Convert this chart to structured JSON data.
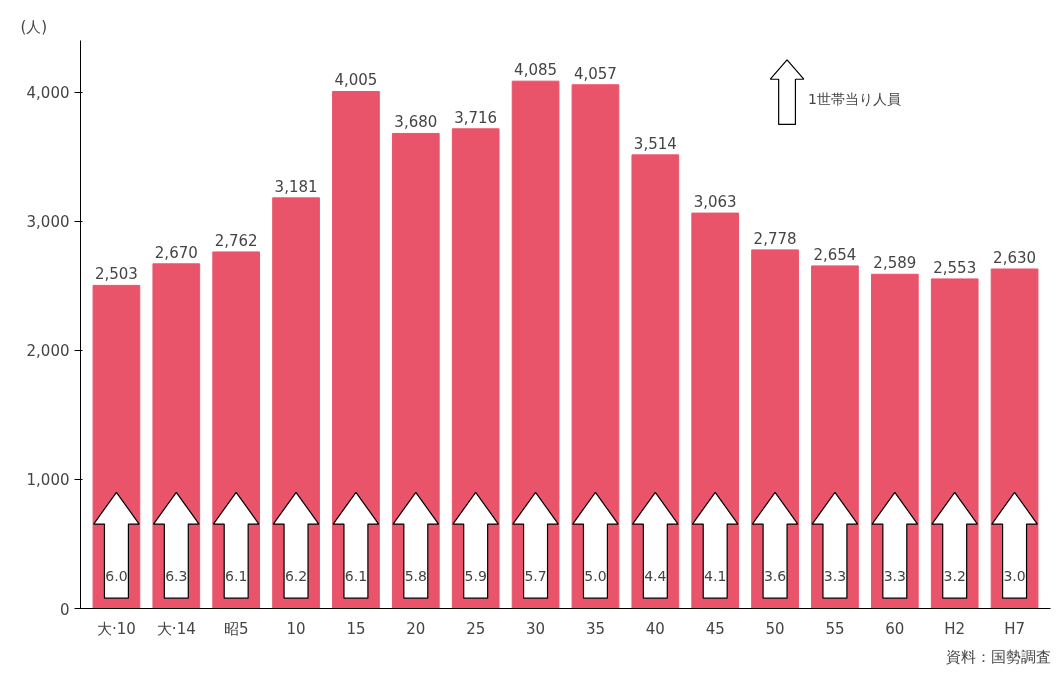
{
  "chart_data": {
    "type": "bar",
    "ylabel": "(人)",
    "categories": [
      "大·10",
      "大·14",
      "昭5",
      "10",
      "15",
      "20",
      "25",
      "30",
      "35",
      "40",
      "45",
      "50",
      "55",
      "60",
      "H2",
      "H7"
    ],
    "values": [
      2503,
      2670,
      2762,
      3181,
      4005,
      3680,
      3716,
      4085,
      4057,
      3514,
      3063,
      2778,
      2654,
      2589,
      2553,
      2630
    ],
    "color": "#e9546b",
    "ylim": [
      0,
      4400
    ],
    "yticks": [
      0,
      {
        "value": 1000,
        "label": "1,000"
      },
      {
        "value": 2000,
        "label": "2,000"
      },
      {
        "value": 3000,
        "label": "3,000"
      },
      {
        "value": 4000,
        "label": "4,000"
      }
    ],
    "value_labels": [
      "2,503",
      "2,670",
      "2,762",
      "3,181",
      "4,005",
      "3,680",
      "3,716",
      "4,085",
      "4,057",
      "3,514",
      "3,063",
      "2,778",
      "2,654",
      "2,589",
      "2,553",
      "2,630"
    ],
    "grid": false,
    "annotations": [
      "6.0",
      "6.3",
      "6.1",
      "6.2",
      "6.1",
      "5.8",
      "5.9",
      "5.7",
      "5.0",
      "4.4",
      "4.1",
      "3.6",
      "3.3",
      "3.3",
      "3.2",
      "3.0",
      "1世帯当り人員",
      "資料：国勢調査"
    ]
  }
}
